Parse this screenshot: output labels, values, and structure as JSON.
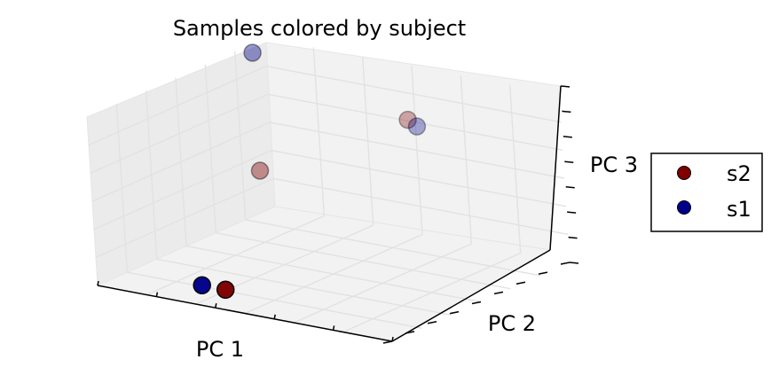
{
  "chart_data": {
    "type": "scatter3d",
    "title": "Samples colored by subject",
    "xlabel": "PC 1",
    "ylabel": "PC 2",
    "zlabel": "PC 3",
    "tick_labels_shown": false,
    "grid": true,
    "legend_position": "right",
    "xlim": [
      0,
      1
    ],
    "ylim": [
      0,
      1
    ],
    "zlim": [
      0,
      1
    ],
    "series": [
      {
        "name": "s2",
        "color": "#800000",
        "points": [
          {
            "x": 0.42,
            "y": 0.03,
            "z": 0.1
          },
          {
            "x": 0.5,
            "y": 0.96,
            "z": 0.7
          },
          {
            "x": 0.05,
            "y": 0.85,
            "z": 0.3
          }
        ]
      },
      {
        "name": "s1",
        "color": "#00008b",
        "points": [
          {
            "x": 0.34,
            "y": 0.03,
            "z": 0.1
          },
          {
            "x": 0.53,
            "y": 0.96,
            "z": 0.67
          },
          {
            "x": 0.05,
            "y": 0.85,
            "z": 1.0
          }
        ]
      }
    ]
  }
}
